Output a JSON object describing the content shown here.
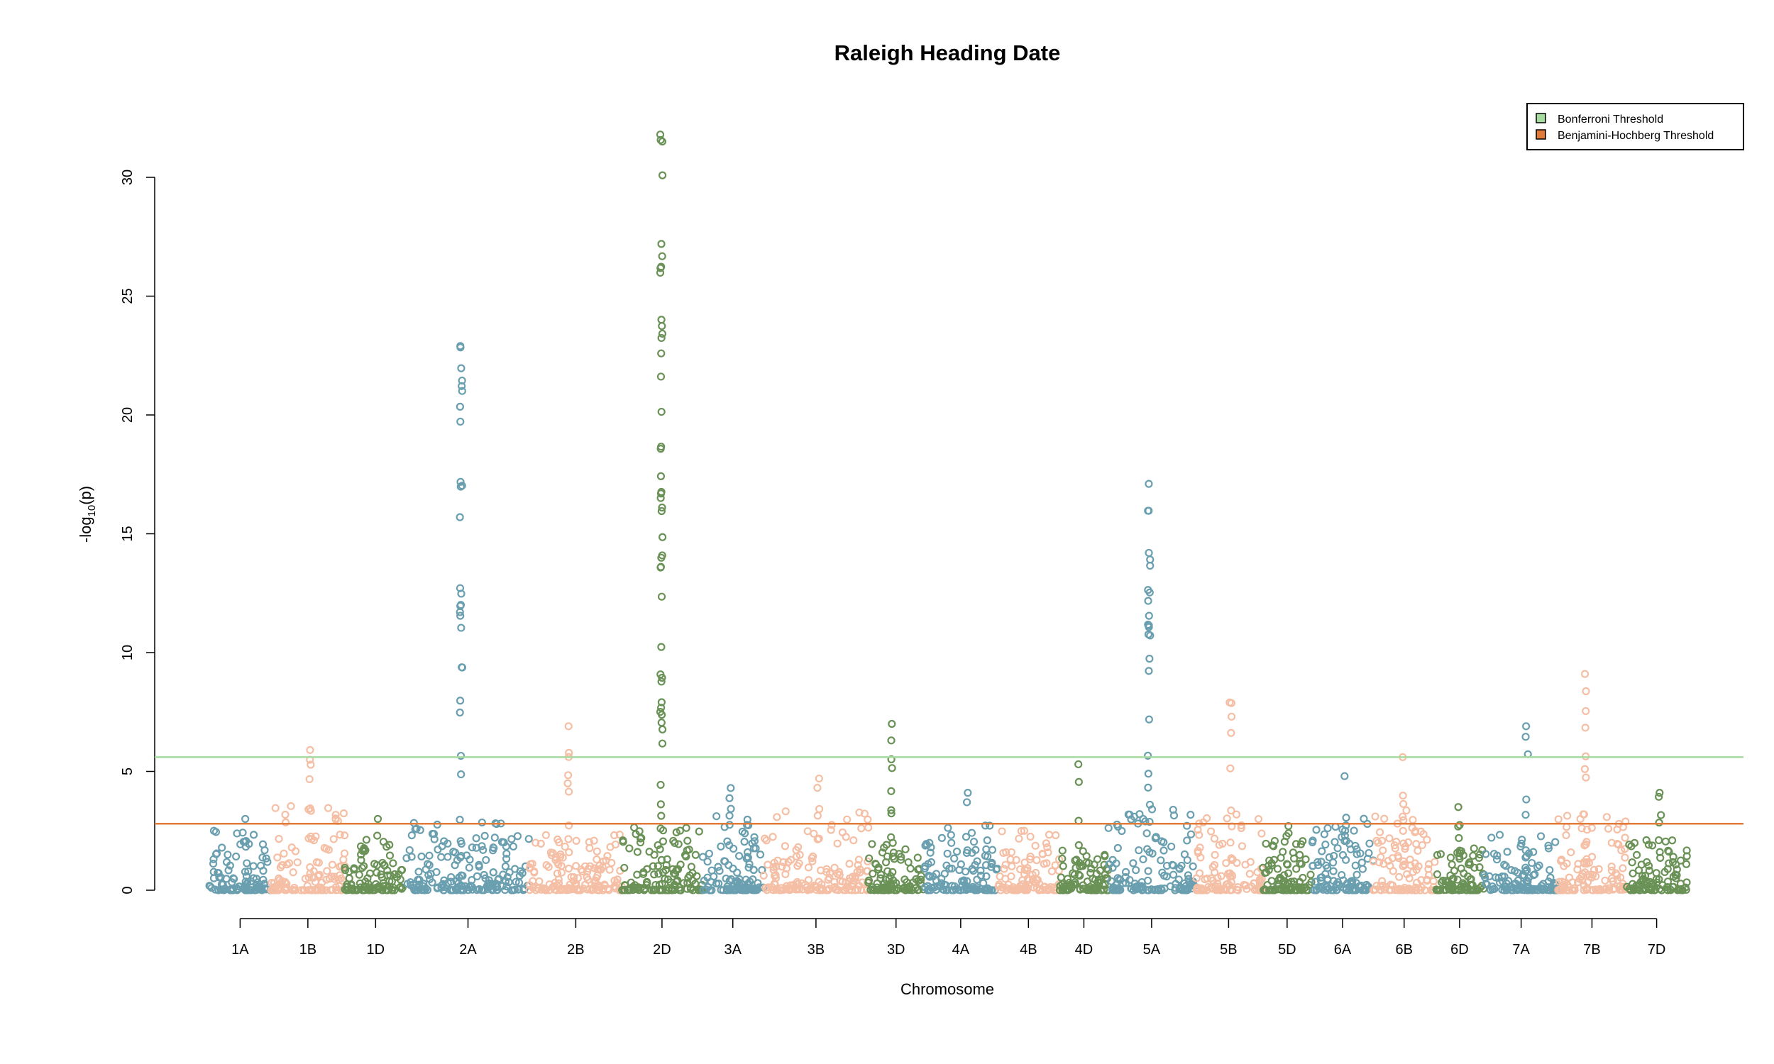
{
  "chart_data": {
    "type": "scatter",
    "title": "Raleigh Heading Date",
    "xlabel": "Chromosome",
    "ylabel_main": "-log",
    "ylabel_sub": "10",
    "ylabel_tail": "(p)",
    "yticks": [
      0,
      5,
      10,
      15,
      20,
      25,
      30
    ],
    "ylim": [
      0,
      32
    ],
    "grid": false,
    "legend_position": "top-right",
    "colors": [
      "#6a9fb0",
      "#f5bfa6",
      "#6a9257"
    ],
    "chromosomes": [
      {
        "name": "1A",
        "start": 0,
        "end": 1,
        "base": 1.4,
        "peak": 3.0
      },
      {
        "name": "1B",
        "start": 1,
        "end": 2.2,
        "base": 2.0,
        "peak": 5.9
      },
      {
        "name": "1D",
        "start": 2.2,
        "end": 3.2,
        "base": 1.2,
        "peak": 3.0
      },
      {
        "name": "2A",
        "start": 3.2,
        "end": 5.2,
        "base": 1.6,
        "peak": 22.9
      },
      {
        "name": "2B",
        "start": 5.2,
        "end": 6.7,
        "base": 1.3,
        "peak": 6.9
      },
      {
        "name": "2D",
        "start": 6.7,
        "end": 8.0,
        "base": 1.5,
        "peak": 31.8
      },
      {
        "name": "3A",
        "start": 8.0,
        "end": 9.0,
        "base": 1.8,
        "peak": 4.3
      },
      {
        "name": "3B",
        "start": 9.0,
        "end": 10.7,
        "base": 1.9,
        "peak": 4.7
      },
      {
        "name": "3D",
        "start": 10.7,
        "end": 11.6,
        "base": 1.1,
        "peak": 7.0
      },
      {
        "name": "4A",
        "start": 11.6,
        "end": 12.8,
        "base": 1.6,
        "peak": 4.1
      },
      {
        "name": "4B",
        "start": 12.8,
        "end": 13.8,
        "base": 1.4,
        "peak": 2.5
      },
      {
        "name": "4D",
        "start": 13.8,
        "end": 14.6,
        "base": 1.0,
        "peak": 5.3
      },
      {
        "name": "5A",
        "start": 14.6,
        "end": 16.0,
        "base": 1.9,
        "peak": 17.1
      },
      {
        "name": "5B",
        "start": 16.0,
        "end": 17.1,
        "base": 1.8,
        "peak": 7.9
      },
      {
        "name": "5D",
        "start": 17.1,
        "end": 17.9,
        "base": 1.4,
        "peak": 2.7
      },
      {
        "name": "6A",
        "start": 17.9,
        "end": 18.9,
        "base": 1.7,
        "peak": 4.8
      },
      {
        "name": "6B",
        "start": 18.9,
        "end": 19.9,
        "base": 1.9,
        "peak": 5.6
      },
      {
        "name": "6D",
        "start": 19.9,
        "end": 20.7,
        "base": 1.0,
        "peak": 3.5
      },
      {
        "name": "7A",
        "start": 20.7,
        "end": 21.9,
        "base": 1.3,
        "peak": 6.9
      },
      {
        "name": "7B",
        "start": 21.9,
        "end": 23.0,
        "base": 1.8,
        "peak": 9.1
      },
      {
        "name": "7D",
        "start": 23.0,
        "end": 24.0,
        "base": 1.2,
        "peak": 4.1
      }
    ],
    "thresholds": [
      {
        "name": "Bonferroni Threshold",
        "value": 5.6,
        "color": "#a6dba0"
      },
      {
        "name": "Benjamini-Hochberg Threshold",
        "value": 2.8,
        "color": "#e07b39"
      }
    ]
  }
}
